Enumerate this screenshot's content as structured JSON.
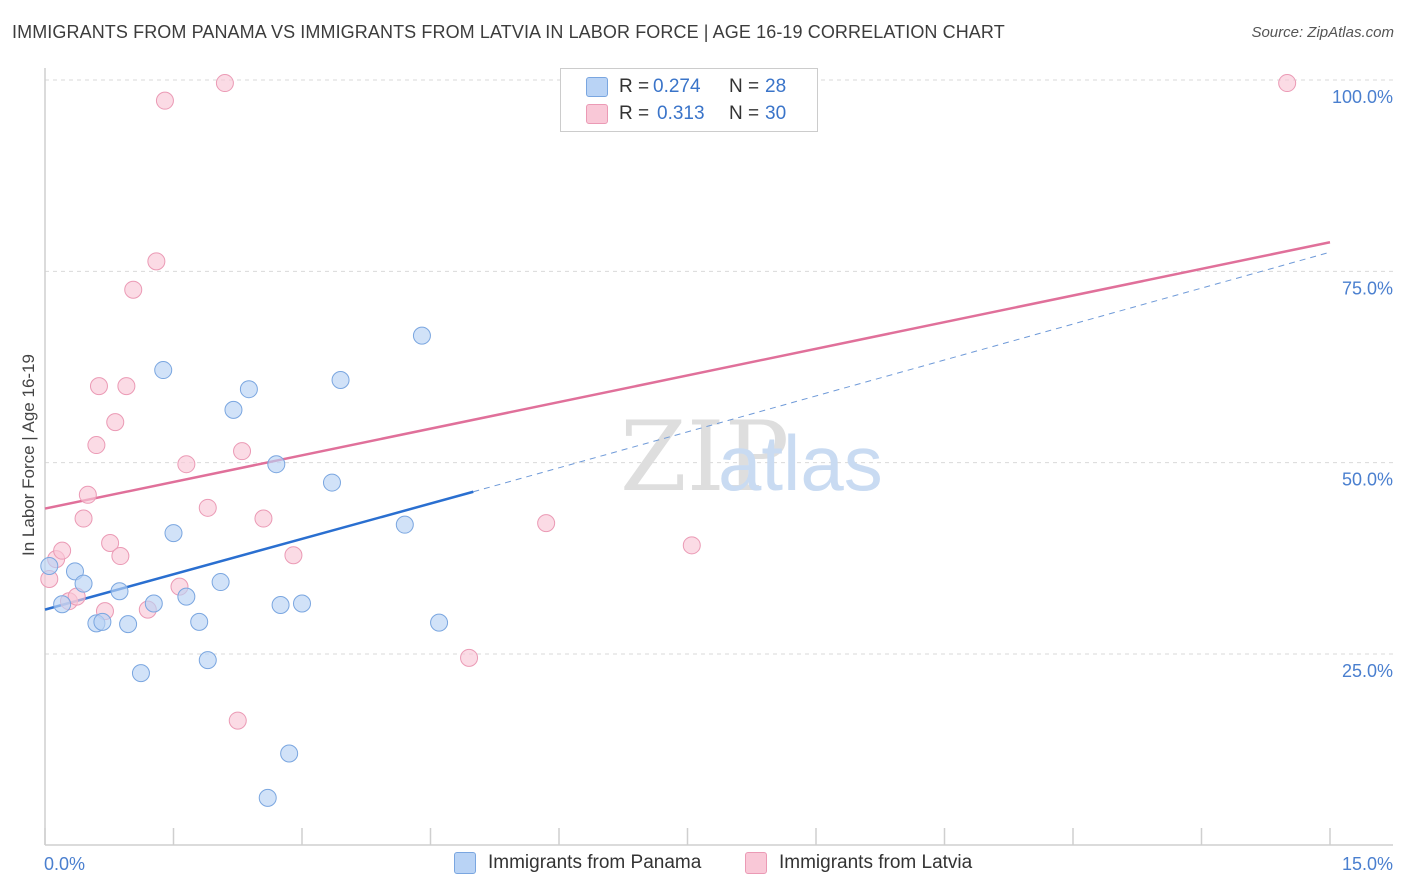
{
  "title": "IMMIGRANTS FROM PANAMA VS IMMIGRANTS FROM LATVIA IN LABOR FORCE | AGE 16-19 CORRELATION CHART",
  "source": "Source: ZipAtlas.com",
  "watermark": {
    "zip": "ZIP",
    "atlas": "atlas"
  },
  "legend": {
    "panama": {
      "r_label": "R =",
      "r_value": "0.274",
      "n_label": "N =",
      "n_value": "28"
    },
    "latvia": {
      "r_label": "R =",
      "r_value": "0.313",
      "n_label": "N =",
      "n_value": "30"
    }
  },
  "bottom_legend": {
    "panama": "Immigrants from Panama",
    "latvia": "Immigrants from Latvia"
  },
  "colors": {
    "panama_fill": "#b9d3f5",
    "panama_stroke": "#7aa6e0",
    "panama_line": "#2a6fd0",
    "latvia_fill": "#f9c8d7",
    "latvia_stroke": "#eb9ab5",
    "latvia_line": "#e0709a",
    "grid": "#d9d9d9",
    "tick_text": "#4a7fcf"
  },
  "chart_data": {
    "type": "scatter",
    "title": "IMMIGRANTS FROM PANAMA VS IMMIGRANTS FROM LATVIA IN LABOR FORCE | AGE 16-19 CORRELATION CHART",
    "xlabel": "",
    "ylabel": "In Labor Force | Age 16-19",
    "xlim": [
      0,
      15
    ],
    "ylim": [
      0,
      102
    ],
    "x_tick_labels": [
      "0.0%",
      "15.0%"
    ],
    "y_ticks": [
      25,
      50,
      75,
      100
    ],
    "y_tick_labels": [
      "25.0%",
      "50.0%",
      "75.0%",
      "100.0%"
    ],
    "series": [
      {
        "name": "Immigrants from Panama",
        "r": 0.274,
        "n": 28,
        "points": [
          [
            0.05,
            36.5
          ],
          [
            0.2,
            31.5
          ],
          [
            0.35,
            35.8
          ],
          [
            0.45,
            34.2
          ],
          [
            0.6,
            29.0
          ],
          [
            0.67,
            29.2
          ],
          [
            0.87,
            33.2
          ],
          [
            0.97,
            28.9
          ],
          [
            1.12,
            22.5
          ],
          [
            1.27,
            31.6
          ],
          [
            1.38,
            62.1
          ],
          [
            1.5,
            40.8
          ],
          [
            1.65,
            32.5
          ],
          [
            1.8,
            29.2
          ],
          [
            1.9,
            24.2
          ],
          [
            2.05,
            34.4
          ],
          [
            2.2,
            56.9
          ],
          [
            2.38,
            59.6
          ],
          [
            2.6,
            6.2
          ],
          [
            2.7,
            49.8
          ],
          [
            2.75,
            31.4
          ],
          [
            2.85,
            12.0
          ],
          [
            3.0,
            31.6
          ],
          [
            3.35,
            47.4
          ],
          [
            3.45,
            60.8
          ],
          [
            4.2,
            41.9
          ],
          [
            4.4,
            66.6
          ],
          [
            4.6,
            29.1
          ]
        ],
        "trend": {
          "x": [
            0.0,
            5.0
          ],
          "y": [
            30.8,
            46.2
          ]
        },
        "trend_dashed": {
          "x": [
            5.0,
            15.0
          ],
          "y": [
            46.2,
            77.5
          ]
        }
      },
      {
        "name": "Immigrants from Latvia",
        "r": 0.313,
        "n": 30,
        "points": [
          [
            0.05,
            34.8
          ],
          [
            0.13,
            37.4
          ],
          [
            0.2,
            38.5
          ],
          [
            0.28,
            31.9
          ],
          [
            0.37,
            32.5
          ],
          [
            0.45,
            42.7
          ],
          [
            0.5,
            45.8
          ],
          [
            0.6,
            52.3
          ],
          [
            0.63,
            60.0
          ],
          [
            0.7,
            30.6
          ],
          [
            0.76,
            39.5
          ],
          [
            0.82,
            55.3
          ],
          [
            0.88,
            37.8
          ],
          [
            0.95,
            60.0
          ],
          [
            1.03,
            72.6
          ],
          [
            1.2,
            30.8
          ],
          [
            1.3,
            76.3
          ],
          [
            1.4,
            97.3
          ],
          [
            1.57,
            33.8
          ],
          [
            1.65,
            49.8
          ],
          [
            1.9,
            44.1
          ],
          [
            2.1,
            99.6
          ],
          [
            2.25,
            16.3
          ],
          [
            2.3,
            51.5
          ],
          [
            2.55,
            42.7
          ],
          [
            2.9,
            37.9
          ],
          [
            4.95,
            24.5
          ],
          [
            5.85,
            42.1
          ],
          [
            7.55,
            39.2
          ],
          [
            14.5,
            99.6
          ]
        ],
        "trend": {
          "x": [
            0.0,
            15.0
          ],
          "y": [
            44.0,
            78.8
          ]
        }
      }
    ]
  }
}
